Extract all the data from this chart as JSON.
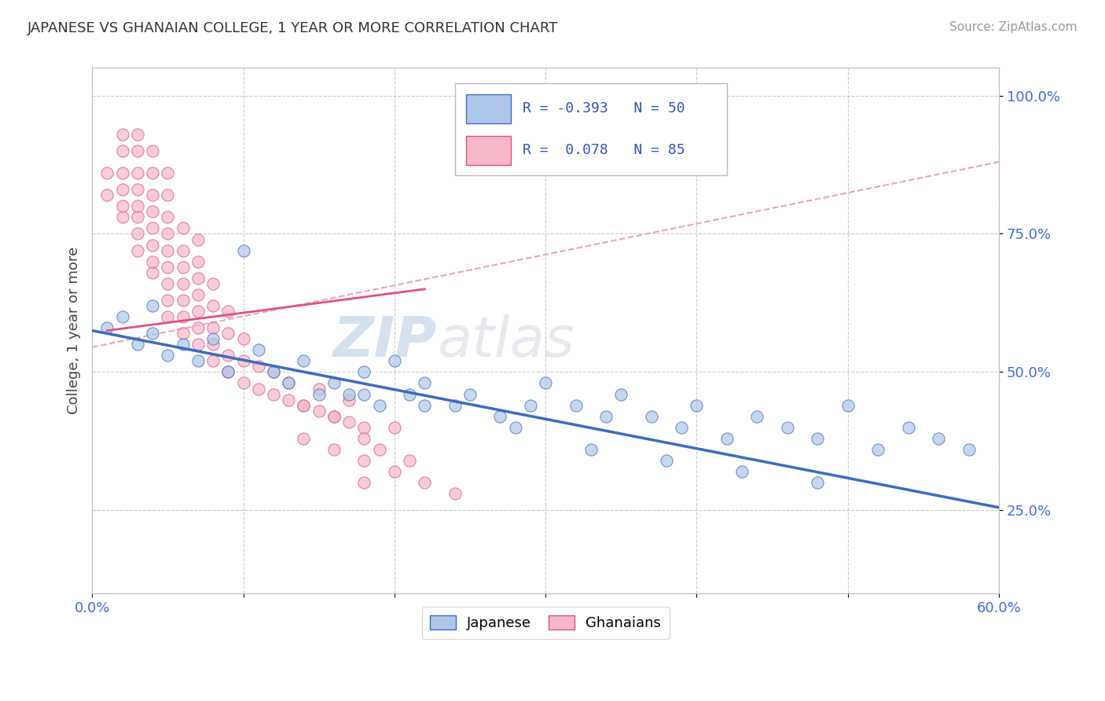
{
  "title": "JAPANESE VS GHANAIAN COLLEGE, 1 YEAR OR MORE CORRELATION CHART",
  "source_text": "Source: ZipAtlas.com",
  "ylabel": "College, 1 year or more",
  "xlim": [
    0.0,
    0.6
  ],
  "ylim": [
    0.1,
    1.05
  ],
  "xtick_positions": [
    0.0,
    0.1,
    0.2,
    0.3,
    0.4,
    0.5,
    0.6
  ],
  "xticklabels": [
    "0.0%",
    "",
    "",
    "",
    "",
    "",
    "60.0%"
  ],
  "ytick_positions": [
    0.25,
    0.5,
    0.75,
    1.0
  ],
  "yticklabels": [
    "25.0%",
    "50.0%",
    "75.0%",
    "100.0%"
  ],
  "color_japanese": "#AEC6E8",
  "color_ghanaians": "#F4B8C8",
  "color_blue_line": "#3B6BBF",
  "color_pink_line": "#E05080",
  "color_dashed": "#E8A8B0",
  "background_color": "#FFFFFF",
  "watermark_text": "ZIPatlas",
  "japanese_scatter_x": [
    0.01,
    0.02,
    0.03,
    0.04,
    0.04,
    0.05,
    0.06,
    0.07,
    0.08,
    0.09,
    0.1,
    0.11,
    0.12,
    0.13,
    0.14,
    0.15,
    0.16,
    0.17,
    0.18,
    0.19,
    0.2,
    0.21,
    0.22,
    0.24,
    0.25,
    0.27,
    0.29,
    0.3,
    0.32,
    0.34,
    0.35,
    0.37,
    0.39,
    0.4,
    0.42,
    0.44,
    0.46,
    0.48,
    0.5,
    0.52,
    0.54,
    0.56,
    0.58,
    0.18,
    0.22,
    0.28,
    0.33,
    0.38,
    0.43,
    0.48
  ],
  "japanese_scatter_y": [
    0.58,
    0.6,
    0.55,
    0.57,
    0.62,
    0.53,
    0.55,
    0.52,
    0.56,
    0.5,
    0.72,
    0.54,
    0.5,
    0.48,
    0.52,
    0.46,
    0.48,
    0.46,
    0.5,
    0.44,
    0.52,
    0.46,
    0.48,
    0.44,
    0.46,
    0.42,
    0.44,
    0.48,
    0.44,
    0.42,
    0.46,
    0.42,
    0.4,
    0.44,
    0.38,
    0.42,
    0.4,
    0.38,
    0.44,
    0.36,
    0.4,
    0.38,
    0.36,
    0.46,
    0.44,
    0.4,
    0.36,
    0.34,
    0.32,
    0.3
  ],
  "ghanaian_scatter_x": [
    0.01,
    0.01,
    0.02,
    0.02,
    0.02,
    0.02,
    0.02,
    0.02,
    0.03,
    0.03,
    0.03,
    0.03,
    0.03,
    0.03,
    0.03,
    0.03,
    0.04,
    0.04,
    0.04,
    0.04,
    0.04,
    0.04,
    0.04,
    0.04,
    0.05,
    0.05,
    0.05,
    0.05,
    0.05,
    0.05,
    0.05,
    0.05,
    0.05,
    0.06,
    0.06,
    0.06,
    0.06,
    0.06,
    0.06,
    0.06,
    0.07,
    0.07,
    0.07,
    0.07,
    0.07,
    0.07,
    0.07,
    0.08,
    0.08,
    0.08,
    0.08,
    0.08,
    0.09,
    0.09,
    0.09,
    0.09,
    0.1,
    0.1,
    0.1,
    0.11,
    0.11,
    0.12,
    0.12,
    0.13,
    0.13,
    0.14,
    0.15,
    0.15,
    0.16,
    0.17,
    0.17,
    0.18,
    0.14,
    0.16,
    0.2,
    0.18,
    0.19,
    0.21,
    0.16,
    0.18,
    0.2,
    0.22,
    0.24,
    0.14,
    0.18
  ],
  "ghanaian_scatter_y": [
    0.82,
    0.86,
    0.78,
    0.8,
    0.83,
    0.86,
    0.9,
    0.93,
    0.72,
    0.75,
    0.78,
    0.8,
    0.83,
    0.86,
    0.9,
    0.93,
    0.68,
    0.7,
    0.73,
    0.76,
    0.79,
    0.82,
    0.86,
    0.9,
    0.6,
    0.63,
    0.66,
    0.69,
    0.72,
    0.75,
    0.78,
    0.82,
    0.86,
    0.57,
    0.6,
    0.63,
    0.66,
    0.69,
    0.72,
    0.76,
    0.55,
    0.58,
    0.61,
    0.64,
    0.67,
    0.7,
    0.74,
    0.52,
    0.55,
    0.58,
    0.62,
    0.66,
    0.5,
    0.53,
    0.57,
    0.61,
    0.48,
    0.52,
    0.56,
    0.47,
    0.51,
    0.46,
    0.5,
    0.45,
    0.48,
    0.44,
    0.43,
    0.47,
    0.42,
    0.41,
    0.45,
    0.4,
    0.44,
    0.42,
    0.4,
    0.38,
    0.36,
    0.34,
    0.36,
    0.34,
    0.32,
    0.3,
    0.28,
    0.38,
    0.3
  ],
  "jap_line_x": [
    0.0,
    0.6
  ],
  "jap_line_y": [
    0.575,
    0.255
  ],
  "gha_line_x": [
    0.01,
    0.22
  ],
  "gha_line_y": [
    0.575,
    0.65
  ],
  "dash_line_x": [
    0.0,
    0.6
  ],
  "dash_line_y": [
    0.545,
    0.88
  ]
}
